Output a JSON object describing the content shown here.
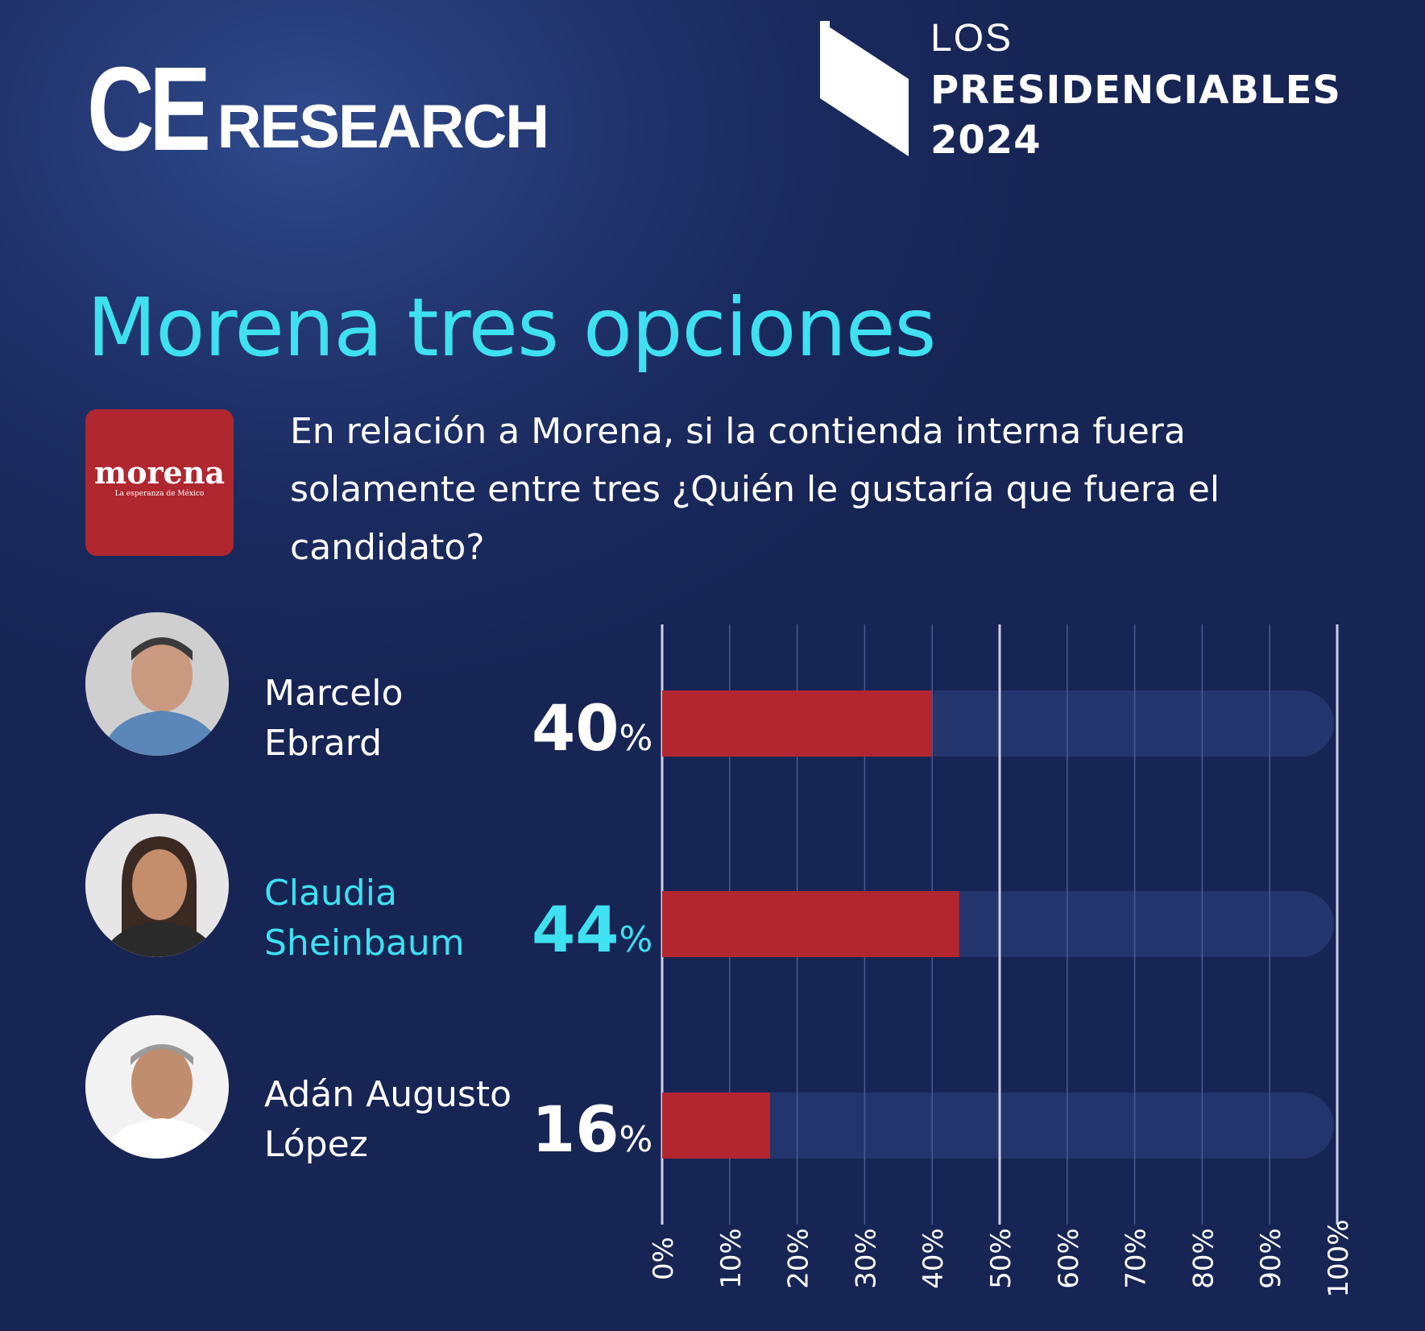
{
  "header": {
    "logo_ce": "CE",
    "logo_research": "RESEARCH",
    "pres_line1": "LOS",
    "pres_line2": "PRESIDENCIABLES",
    "pres_line3": "2024"
  },
  "title": "Morena tres opciones",
  "morena_logo": {
    "word": "morena",
    "tagline": "La esperanza de México",
    "color": "#b0272f"
  },
  "question": "En relación a Morena, si la contienda interna fuera solamente entre tres ¿Quién le gustaría que fuera el candidato?",
  "colors": {
    "accent": "#3fe0f0",
    "bar": "#b3262f",
    "track": "#2a3a74",
    "background": "#1a2a5e"
  },
  "candidates": [
    {
      "first": "Marcelo",
      "last": "Ebrard",
      "value_label": "40",
      "sign": "%",
      "highlight": false,
      "avatar_icon": "person-photo-icon"
    },
    {
      "first": "Claudia",
      "last": "Sheinbaum",
      "value_label": "44",
      "sign": "%",
      "highlight": true,
      "avatar_icon": "person-photo-icon"
    },
    {
      "first": "Adán Augusto",
      "last": "López",
      "value_label": "16",
      "sign": "%",
      "highlight": false,
      "avatar_icon": "person-photo-icon"
    }
  ],
  "chart_data": {
    "type": "bar",
    "orientation": "horizontal",
    "categories": [
      "Marcelo Ebrard",
      "Claudia Sheinbaum",
      "Adán Augusto López"
    ],
    "values": [
      40,
      44,
      16
    ],
    "xlim": [
      0,
      100
    ],
    "x_ticks": [
      "0%",
      "10%",
      "20%",
      "30%",
      "40%",
      "50%",
      "60%",
      "70%",
      "80%",
      "90%",
      "100%"
    ],
    "grid": true
  }
}
